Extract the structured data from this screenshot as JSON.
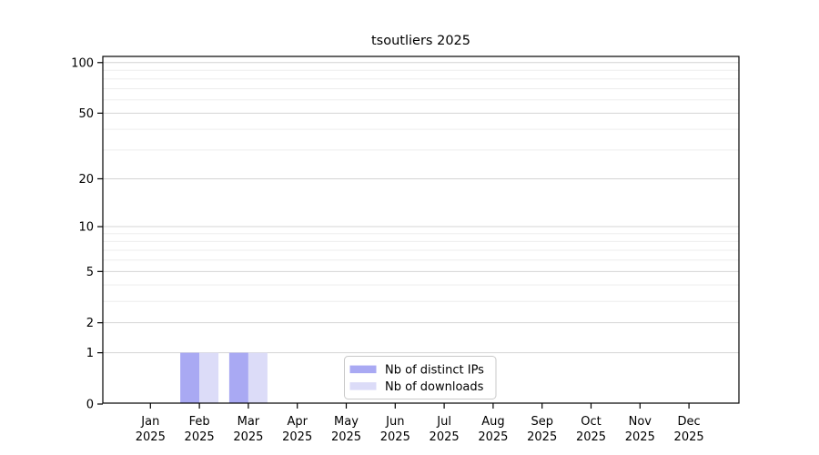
{
  "window": {
    "background": "#ffffff"
  },
  "chart_data": {
    "type": "bar",
    "title": "tsoutliers 2025",
    "categories": [
      "Jan",
      "Feb",
      "Mar",
      "Apr",
      "May",
      "Jun",
      "Jul",
      "Aug",
      "Sep",
      "Oct",
      "Nov",
      "Dec"
    ],
    "year_label": "2025",
    "series": [
      {
        "name": "Nb of distinct IPs",
        "color": "#a9a9f3",
        "values": [
          0,
          1,
          1,
          0,
          0,
          0,
          0,
          0,
          0,
          0,
          0,
          0
        ]
      },
      {
        "name": "Nb of downloads",
        "color": "#dcdcf8",
        "values": [
          0,
          1,
          1,
          0,
          0,
          0,
          0,
          0,
          0,
          0,
          0,
          0
        ]
      }
    ],
    "yscale": "log1p",
    "ylim": [
      0,
      100
    ],
    "ytick_values": [
      0,
      1,
      2,
      5,
      10,
      20,
      50,
      100
    ],
    "yminor_values": [
      3,
      4,
      6,
      7,
      8,
      9,
      30,
      40,
      60,
      70,
      80,
      90
    ],
    "grid": "horizontal",
    "legend_position": "bottom-center-inside",
    "colors": {
      "grid_major": "#d4d4d4",
      "grid_minor": "#ededed",
      "axis": "#000000",
      "text": "#000000",
      "legend_border": "#c9c9c9",
      "legend_background": "#ffffff"
    }
  }
}
